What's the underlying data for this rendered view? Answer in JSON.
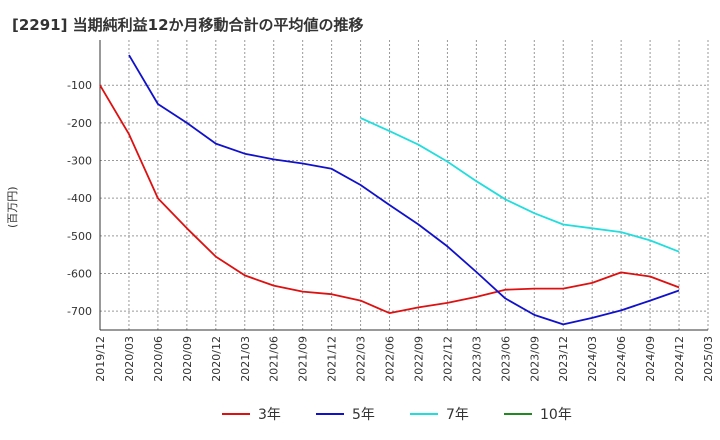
{
  "chart_data": {
    "type": "line",
    "title": "[2291]  当期純利益12か月移動合計の平均値の推移",
    "ylabel": "(百万円)",
    "xlabel": "",
    "ylim": [
      -750,
      20
    ],
    "yticks": [
      -100,
      -200,
      -300,
      -400,
      -500,
      -600,
      -700
    ],
    "x_ticks": [
      "2019/12",
      "2020/03",
      "2020/06",
      "2020/09",
      "2020/12",
      "2021/03",
      "2021/06",
      "2021/09",
      "2021/12",
      "2022/03",
      "2022/06",
      "2022/09",
      "2022/12",
      "2023/03",
      "2023/06",
      "2023/09",
      "2023/12",
      "2024/03",
      "2024/06",
      "2024/09",
      "2024/12",
      "2025/03"
    ],
    "grid": true,
    "legend_position": "bottom",
    "series": [
      {
        "name": "3年",
        "color": "#dd1111",
        "x": [
          "2019/12",
          "2020/03",
          "2020/06",
          "2020/09",
          "2020/12",
          "2021/03",
          "2021/06",
          "2021/09",
          "2021/12",
          "2022/03",
          "2022/06",
          "2022/09",
          "2022/12",
          "2023/03",
          "2023/06",
          "2023/09",
          "2023/12",
          "2024/03",
          "2024/06",
          "2024/09",
          "2024/12"
        ],
        "values": [
          -100,
          -230,
          -400,
          -480,
          -555,
          -605,
          -632,
          -648,
          -655,
          -672,
          -705,
          -690,
          -678,
          -662,
          -643,
          -640,
          -640,
          -625,
          -597,
          -608,
          -637
        ]
      },
      {
        "name": "5年",
        "color": "#1111cc",
        "x": [
          "2020/03",
          "2020/06",
          "2020/09",
          "2020/12",
          "2021/03",
          "2021/06",
          "2021/09",
          "2021/12",
          "2022/03",
          "2022/06",
          "2022/09",
          "2022/12",
          "2023/03",
          "2023/06",
          "2023/09",
          "2023/12",
          "2024/03",
          "2024/06",
          "2024/09",
          "2024/12"
        ],
        "values": [
          -20,
          -150,
          -200,
          -255,
          -282,
          -297,
          -308,
          -322,
          -365,
          -418,
          -470,
          -528,
          -596,
          -666,
          -710,
          -735,
          -718,
          -698,
          -672,
          -645
        ]
      },
      {
        "name": "7年",
        "color": "#22dddd",
        "x": [
          "2022/03",
          "2022/06",
          "2022/09",
          "2022/12",
          "2023/03",
          "2023/06",
          "2023/09",
          "2023/12",
          "2024/03",
          "2024/06",
          "2024/09",
          "2024/12"
        ],
        "values": [
          -187,
          -222,
          -258,
          -303,
          -355,
          -403,
          -440,
          -470,
          -480,
          -490,
          -512,
          -542
        ]
      },
      {
        "name": "10年",
        "color": "#228822",
        "x": [],
        "values": []
      }
    ]
  }
}
